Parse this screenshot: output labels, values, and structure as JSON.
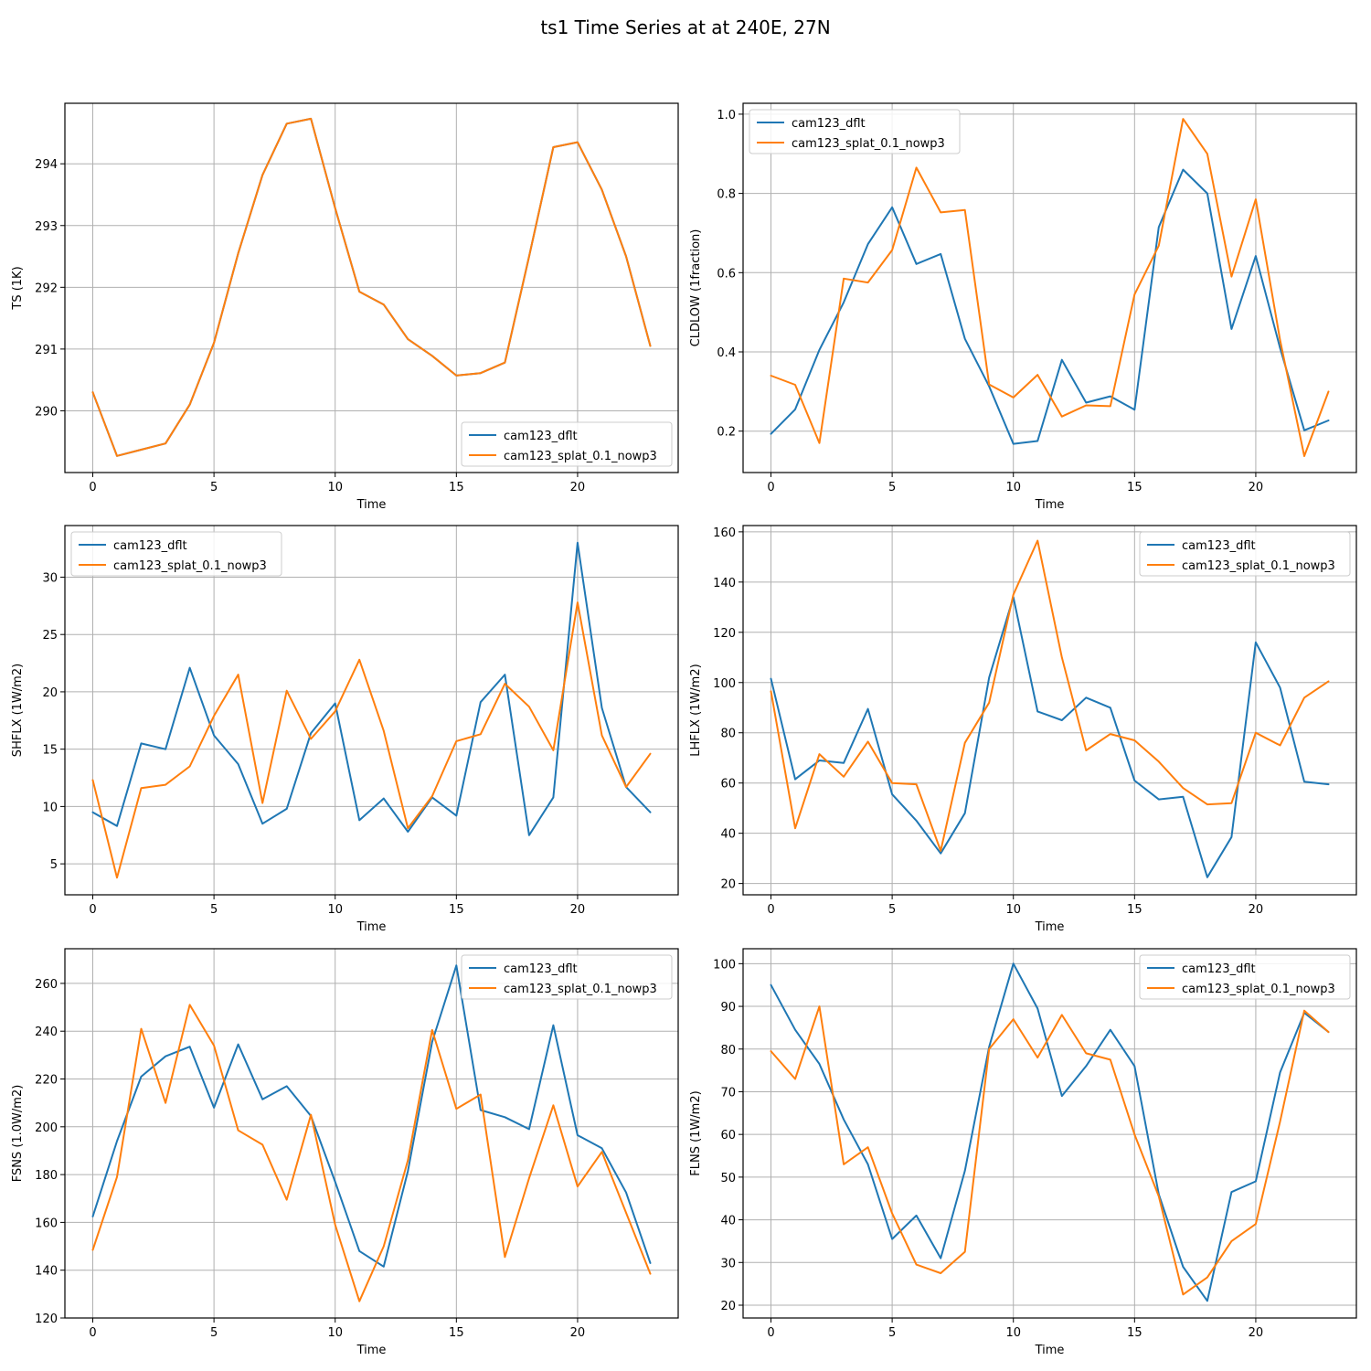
{
  "figure_title": "ts1 Time Series at at 240E, 27N",
  "colors": {
    "series_0": "#1f77b4",
    "series_1": "#ff7f0e"
  },
  "chart_data": [
    {
      "type": "line",
      "xlabel": "Time",
      "ylabel": "TS (1K)",
      "xlim": [
        -1.15,
        24.15
      ],
      "ylim": [
        289.0,
        294.98
      ],
      "xticks": [
        0,
        5,
        10,
        15,
        20
      ],
      "yticks": [
        290,
        291,
        292,
        293,
        294
      ],
      "grid": true,
      "legend_position": "lower-right",
      "x": [
        0,
        1,
        2,
        3,
        4,
        5,
        6,
        7,
        8,
        9,
        10,
        11,
        12,
        13,
        14,
        15,
        16,
        17,
        18,
        19,
        20,
        21,
        22,
        23
      ],
      "series": [
        {
          "name": "cam123_dflt",
          "values": [
            290.3,
            289.27,
            289.37,
            289.47,
            290.1,
            291.1,
            292.55,
            293.82,
            294.65,
            294.73,
            293.28,
            291.93,
            291.72,
            291.16,
            290.89,
            290.57,
            290.61,
            290.78,
            292.5,
            294.27,
            294.35,
            293.58,
            292.5,
            291.05
          ]
        },
        {
          "name": "cam123_splat_0.1_nowp3",
          "values": [
            290.3,
            289.27,
            289.37,
            289.47,
            290.1,
            291.1,
            292.55,
            293.82,
            294.65,
            294.73,
            293.28,
            291.93,
            291.72,
            291.16,
            290.89,
            290.57,
            290.61,
            290.78,
            292.5,
            294.27,
            294.35,
            293.58,
            292.5,
            291.05
          ]
        }
      ]
    },
    {
      "type": "line",
      "xlabel": "Time",
      "ylabel": "CLDLOW (1fraction)",
      "xlim": [
        -1.15,
        24.15
      ],
      "ylim": [
        0.0955,
        1.0275
      ],
      "xticks": [
        0,
        5,
        10,
        15,
        20
      ],
      "yticks": [
        0.2,
        0.4,
        0.6,
        0.8,
        1.0
      ],
      "ytick_labels": [
        "0.2",
        "0.4",
        "0.6",
        "0.8",
        "1.0"
      ],
      "grid": true,
      "legend_position": "upper-left",
      "x": [
        0,
        1,
        2,
        3,
        4,
        5,
        6,
        7,
        8,
        9,
        10,
        11,
        12,
        13,
        14,
        15,
        16,
        17,
        18,
        19,
        20,
        21,
        22,
        23
      ],
      "series": [
        {
          "name": "cam123_dflt",
          "values": [
            0.193,
            0.255,
            0.405,
            0.525,
            0.672,
            0.765,
            0.622,
            0.647,
            0.433,
            0.313,
            0.168,
            0.175,
            0.38,
            0.272,
            0.288,
            0.254,
            0.715,
            0.86,
            0.8,
            0.458,
            0.642,
            0.41,
            0.202,
            0.227
          ]
        },
        {
          "name": "cam123_splat_0.1_nowp3",
          "values": [
            0.34,
            0.317,
            0.17,
            0.585,
            0.575,
            0.657,
            0.865,
            0.752,
            0.758,
            0.318,
            0.285,
            0.342,
            0.237,
            0.265,
            0.263,
            0.545,
            0.668,
            0.988,
            0.9,
            0.59,
            0.785,
            0.43,
            0.137,
            0.3
          ]
        }
      ]
    },
    {
      "type": "line",
      "xlabel": "Time",
      "ylabel": "SHFLX (1W/m2)",
      "xlim": [
        -1.15,
        24.15
      ],
      "ylim": [
        2.3,
        34.5
      ],
      "xticks": [
        0,
        5,
        10,
        15,
        20
      ],
      "yticks": [
        5,
        10,
        15,
        20,
        25,
        30
      ],
      "grid": true,
      "legend_position": "upper-left",
      "x": [
        0,
        1,
        2,
        3,
        4,
        5,
        6,
        7,
        8,
        9,
        10,
        11,
        12,
        13,
        14,
        15,
        16,
        17,
        18,
        19,
        20,
        21,
        22,
        23
      ],
      "series": [
        {
          "name": "cam123_dflt",
          "values": [
            9.5,
            8.3,
            15.5,
            15.0,
            22.1,
            16.2,
            13.7,
            8.5,
            9.8,
            16.4,
            19.0,
            8.8,
            10.7,
            7.8,
            10.8,
            9.2,
            19.1,
            21.5,
            7.5,
            10.8,
            33.0,
            18.6,
            11.7,
            9.5
          ]
        },
        {
          "name": "cam123_splat_0.1_nowp3",
          "values": [
            12.3,
            3.8,
            11.6,
            11.9,
            13.5,
            17.9,
            21.5,
            10.3,
            20.1,
            15.9,
            18.3,
            22.8,
            16.6,
            8.1,
            10.9,
            15.7,
            16.3,
            20.7,
            18.7,
            14.9,
            27.8,
            16.2,
            11.7,
            14.6
          ]
        }
      ]
    },
    {
      "type": "line",
      "xlabel": "Time",
      "ylabel": "LHFLX (1W/m2)",
      "xlim": [
        -1.15,
        24.15
      ],
      "ylim": [
        15.5,
        162.5
      ],
      "xticks": [
        0,
        5,
        10,
        15,
        20
      ],
      "yticks": [
        20,
        40,
        60,
        80,
        100,
        120,
        140,
        160
      ],
      "grid": true,
      "legend_position": "upper-right",
      "x": [
        0,
        1,
        2,
        3,
        4,
        5,
        6,
        7,
        8,
        9,
        10,
        11,
        12,
        13,
        14,
        15,
        16,
        17,
        18,
        19,
        20,
        21,
        22,
        23
      ],
      "series": [
        {
          "name": "cam123_dflt",
          "values": [
            101.5,
            61.5,
            69.0,
            68.0,
            89.5,
            55.5,
            45.0,
            32.0,
            48.0,
            102.0,
            134.0,
            88.5,
            85.0,
            94.0,
            90.0,
            61.0,
            53.5,
            54.5,
            22.5,
            38.5,
            116.0,
            98.0,
            60.5,
            59.5
          ]
        },
        {
          "name": "cam123_splat_0.1_nowp3",
          "values": [
            96.5,
            42.0,
            71.5,
            62.5,
            76.5,
            60.0,
            59.5,
            33.0,
            76.0,
            92.0,
            135.0,
            156.5,
            110.0,
            73.0,
            79.5,
            77.0,
            68.5,
            58.0,
            51.5,
            52.0,
            80.0,
            75.0,
            94.0,
            100.5
          ]
        }
      ]
    },
    {
      "type": "line",
      "xlabel": "Time",
      "ylabel": "FSNS (1.0W/m2)",
      "xlim": [
        -1.15,
        24.15
      ],
      "ylim": [
        120.0,
        274.5
      ],
      "xticks": [
        0,
        5,
        10,
        15,
        20
      ],
      "yticks": [
        120,
        140,
        160,
        180,
        200,
        220,
        240,
        260
      ],
      "grid": true,
      "legend_position": "upper-right",
      "x": [
        0,
        1,
        2,
        3,
        4,
        5,
        6,
        7,
        8,
        9,
        10,
        11,
        12,
        13,
        14,
        15,
        16,
        17,
        18,
        19,
        20,
        21,
        22,
        23
      ],
      "series": [
        {
          "name": "cam123_dflt",
          "values": [
            162.5,
            194.0,
            221.0,
            229.5,
            233.5,
            208.0,
            234.5,
            211.5,
            217.0,
            204.5,
            177.0,
            148.0,
            141.5,
            181.5,
            235.5,
            267.5,
            207.0,
            204.0,
            199.0,
            242.5,
            196.5,
            191.0,
            172.5,
            143.0
          ]
        },
        {
          "name": "cam123_splat_0.1_nowp3",
          "values": [
            148.5,
            179.0,
            241.0,
            210.0,
            251.0,
            234.0,
            198.5,
            192.5,
            169.5,
            205.0,
            159.0,
            127.0,
            150.0,
            186.0,
            240.5,
            207.5,
            213.5,
            145.5,
            178.5,
            209.0,
            175.0,
            189.5,
            164.0,
            138.5
          ]
        }
      ]
    },
    {
      "type": "line",
      "xlabel": "Time",
      "ylabel": "FLNS (1W/m2)",
      "xlim": [
        -1.15,
        24.15
      ],
      "ylim": [
        17.0,
        103.5
      ],
      "xticks": [
        0,
        5,
        10,
        15,
        20
      ],
      "yticks": [
        20,
        30,
        40,
        50,
        60,
        70,
        80,
        90,
        100
      ],
      "grid": true,
      "legend_position": "upper-right",
      "x": [
        0,
        1,
        2,
        3,
        4,
        5,
        6,
        7,
        8,
        9,
        10,
        11,
        12,
        13,
        14,
        15,
        16,
        17,
        18,
        19,
        20,
        21,
        22,
        23
      ],
      "series": [
        {
          "name": "cam123_dflt",
          "values": [
            95.0,
            84.5,
            76.5,
            63.5,
            53.0,
            35.5,
            41.0,
            31.0,
            51.5,
            80.5,
            100.0,
            89.5,
            69.0,
            76.0,
            84.5,
            76.0,
            46.0,
            29.0,
            21.0,
            46.5,
            49.0,
            74.5,
            88.5,
            84.0
          ]
        },
        {
          "name": "cam123_splat_0.1_nowp3",
          "values": [
            79.5,
            73.0,
            90.0,
            53.0,
            57.0,
            41.5,
            29.5,
            27.5,
            32.5,
            80.0,
            87.0,
            78.0,
            88.0,
            79.0,
            77.5,
            60.0,
            45.5,
            22.5,
            26.5,
            35.0,
            39.0,
            63.0,
            89.0,
            84.0
          ]
        }
      ]
    }
  ]
}
